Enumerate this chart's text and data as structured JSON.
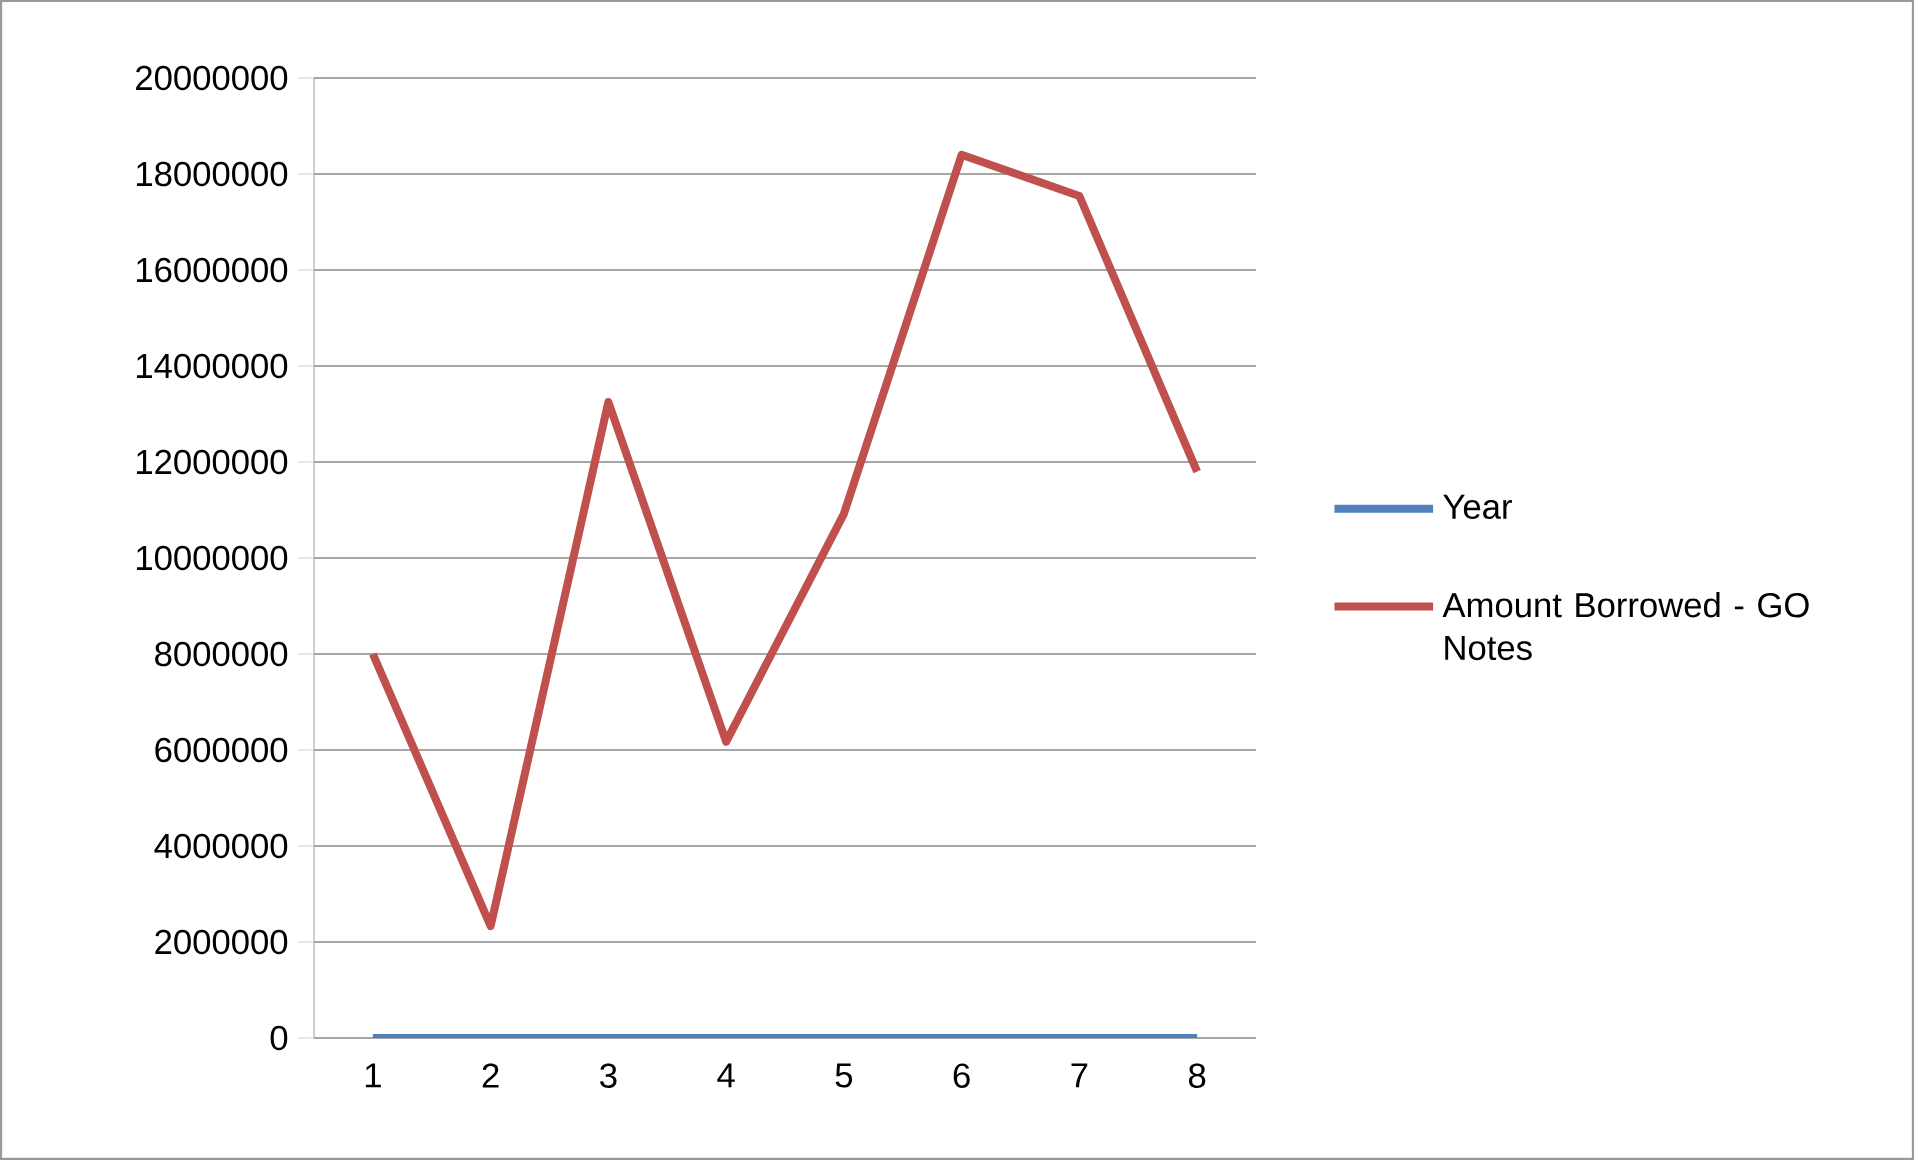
{
  "chart_data": {
    "type": "line",
    "categories": [
      "1",
      "2",
      "3",
      "4",
      "5",
      "6",
      "7",
      "8"
    ],
    "series": [
      {
        "name": "Year",
        "color": "#4f81bd",
        "values": [
          0,
          0,
          0,
          0,
          0,
          0,
          0,
          0
        ]
      },
      {
        "name": "Amount Borrowed - GO Notes",
        "color": "#c0504d",
        "values": [
          8000000,
          2330000,
          13250000,
          6170000,
          10920000,
          18400000,
          17540000,
          11800000
        ]
      }
    ],
    "ylim": [
      0,
      20000000
    ],
    "yticks": [
      0,
      2000000,
      4000000,
      6000000,
      8000000,
      10000000,
      12000000,
      14000000,
      16000000,
      18000000,
      20000000
    ],
    "grid": "y",
    "legend": "right",
    "marker": "none",
    "line_style": "solid"
  }
}
